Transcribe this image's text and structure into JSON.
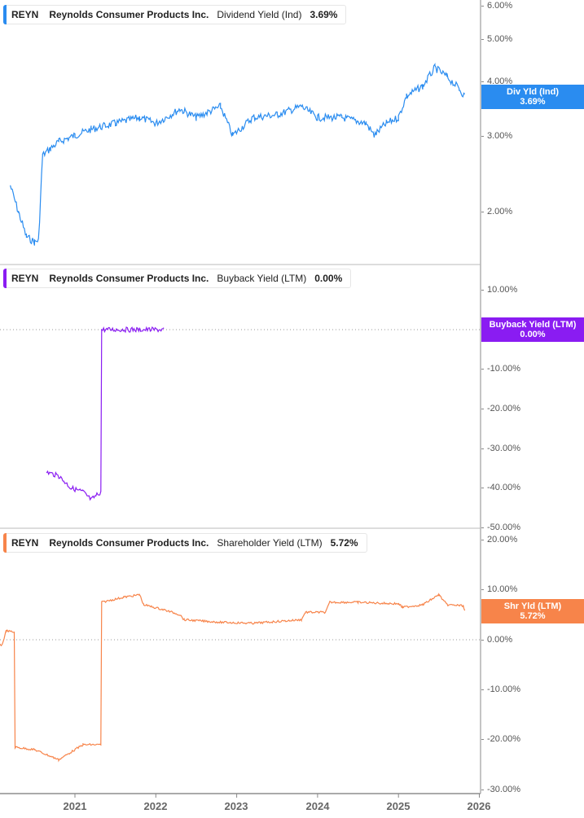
{
  "colors": {
    "dividend": "#2a8cf0",
    "buyback": "#8a1cf2",
    "shareholder": "#f7844a",
    "axis": "#888888",
    "divider": "#bbbbbb"
  },
  "panes": [
    {
      "legend": {
        "ticker": "REYN",
        "company": "Reynolds Consumer Products Inc.",
        "metric": "Dividend Yield (Ind)",
        "value": "3.69%"
      },
      "badge": {
        "label": "Div Yld (Ind)",
        "value": "3.69%"
      },
      "y_ticks": [
        "6.00%",
        "5.00%",
        "4.00%",
        "3.00%",
        "2.00%"
      ]
    },
    {
      "legend": {
        "ticker": "REYN",
        "company": "Reynolds Consumer Products Inc.",
        "metric": "Buyback Yield (LTM)",
        "value": "0.00%"
      },
      "badge": {
        "label": "Buyback Yield (LTM)",
        "value": "0.00%"
      },
      "y_ticks": [
        "10.00%",
        "-10.00%",
        "-20.00%",
        "-30.00%",
        "-40.00%",
        "-50.00%"
      ]
    },
    {
      "legend": {
        "ticker": "REYN",
        "company": "Reynolds Consumer Products Inc.",
        "metric": "Shareholder Yield (LTM)",
        "value": "5.72%"
      },
      "badge": {
        "label": "Shr Yld (LTM)",
        "value": "5.72%"
      },
      "y_ticks": [
        "20.00%",
        "10.00%",
        "0.00%",
        "-10.00%",
        "-20.00%",
        "-30.00%"
      ]
    }
  ],
  "x_axis": {
    "ticks": [
      "2021",
      "2022",
      "2023",
      "2024",
      "2025",
      "2026"
    ]
  },
  "chart_data": [
    {
      "type": "line",
      "title": "REYN Reynolds Consumer Products Inc. Dividend Yield (Ind)",
      "yscale": "log",
      "ylim": [
        1.5,
        6.2
      ],
      "y_ticks": [
        2,
        3,
        4,
        5,
        6
      ],
      "x": [
        2020.2,
        2020.3,
        2020.4,
        2020.5,
        2020.55,
        2020.6,
        2020.7,
        2020.8,
        2021.0,
        2021.2,
        2021.5,
        2021.8,
        2022.0,
        2022.3,
        2022.5,
        2022.8,
        2022.95,
        2023.2,
        2023.5,
        2023.8,
        2024.0,
        2024.3,
        2024.6,
        2024.7,
        2024.85,
        2025.0,
        2025.1,
        2025.3,
        2025.45,
        2025.6,
        2025.75,
        2025.82
      ],
      "series": [
        {
          "name": "Div Yld (Ind)",
          "values": [
            2.3,
            2.0,
            1.75,
            1.7,
            1.72,
            2.7,
            2.8,
            2.9,
            3.0,
            3.1,
            3.2,
            3.3,
            3.2,
            3.45,
            3.3,
            3.5,
            3.0,
            3.3,
            3.35,
            3.5,
            3.3,
            3.3,
            3.2,
            3.0,
            3.2,
            3.3,
            3.7,
            3.9,
            4.3,
            4.1,
            3.85,
            3.69
          ]
        }
      ],
      "last_value": 3.69
    },
    {
      "type": "line",
      "title": "REYN Reynolds Consumer Products Inc. Buyback Yield (LTM)",
      "ylim": [
        -50,
        15
      ],
      "y_ticks": [
        10,
        0,
        -10,
        -20,
        -30,
        -40,
        -50
      ],
      "x": [
        2020.65,
        2020.8,
        2020.95,
        2021.1,
        2021.2,
        2021.32,
        2021.33,
        2021.6,
        2021.8,
        2022.1
      ],
      "series": [
        {
          "name": "Buyback Yield (LTM)",
          "values": [
            -36,
            -37,
            -40,
            -41,
            -43,
            -41,
            0,
            0,
            0,
            0
          ]
        }
      ],
      "last_value": 0.0
    },
    {
      "type": "line",
      "title": "REYN Reynolds Consumer Products Inc. Shareholder Yield (LTM)",
      "ylim": [
        -30,
        20
      ],
      "y_ticks": [
        20,
        10,
        0,
        -10,
        -20,
        -30
      ],
      "x": [
        2020.0,
        2020.1,
        2020.15,
        2020.25,
        2020.26,
        2020.5,
        2020.8,
        2021.1,
        2021.32,
        2021.33,
        2021.6,
        2021.8,
        2021.85,
        2022.1,
        2022.3,
        2022.35,
        2022.8,
        2023.2,
        2023.8,
        2023.85,
        2024.1,
        2024.15,
        2024.5,
        2024.8,
        2025.0,
        2025.05,
        2025.3,
        2025.5,
        2025.6,
        2025.8,
        2025.82
      ],
      "series": [
        {
          "name": "Shr Yld (LTM)",
          "values": [
            -1,
            -1,
            1.8,
            1.5,
            -21.5,
            -22,
            -24,
            -21,
            -21,
            7.5,
            8.5,
            9.0,
            7.0,
            6.0,
            5.0,
            4.0,
            3.5,
            3.3,
            4.0,
            5.5,
            5.5,
            7.5,
            7.5,
            7.3,
            7.2,
            6.5,
            7.0,
            9.0,
            7.0,
            6.8,
            5.72
          ]
        }
      ],
      "last_value": 5.72
    }
  ]
}
